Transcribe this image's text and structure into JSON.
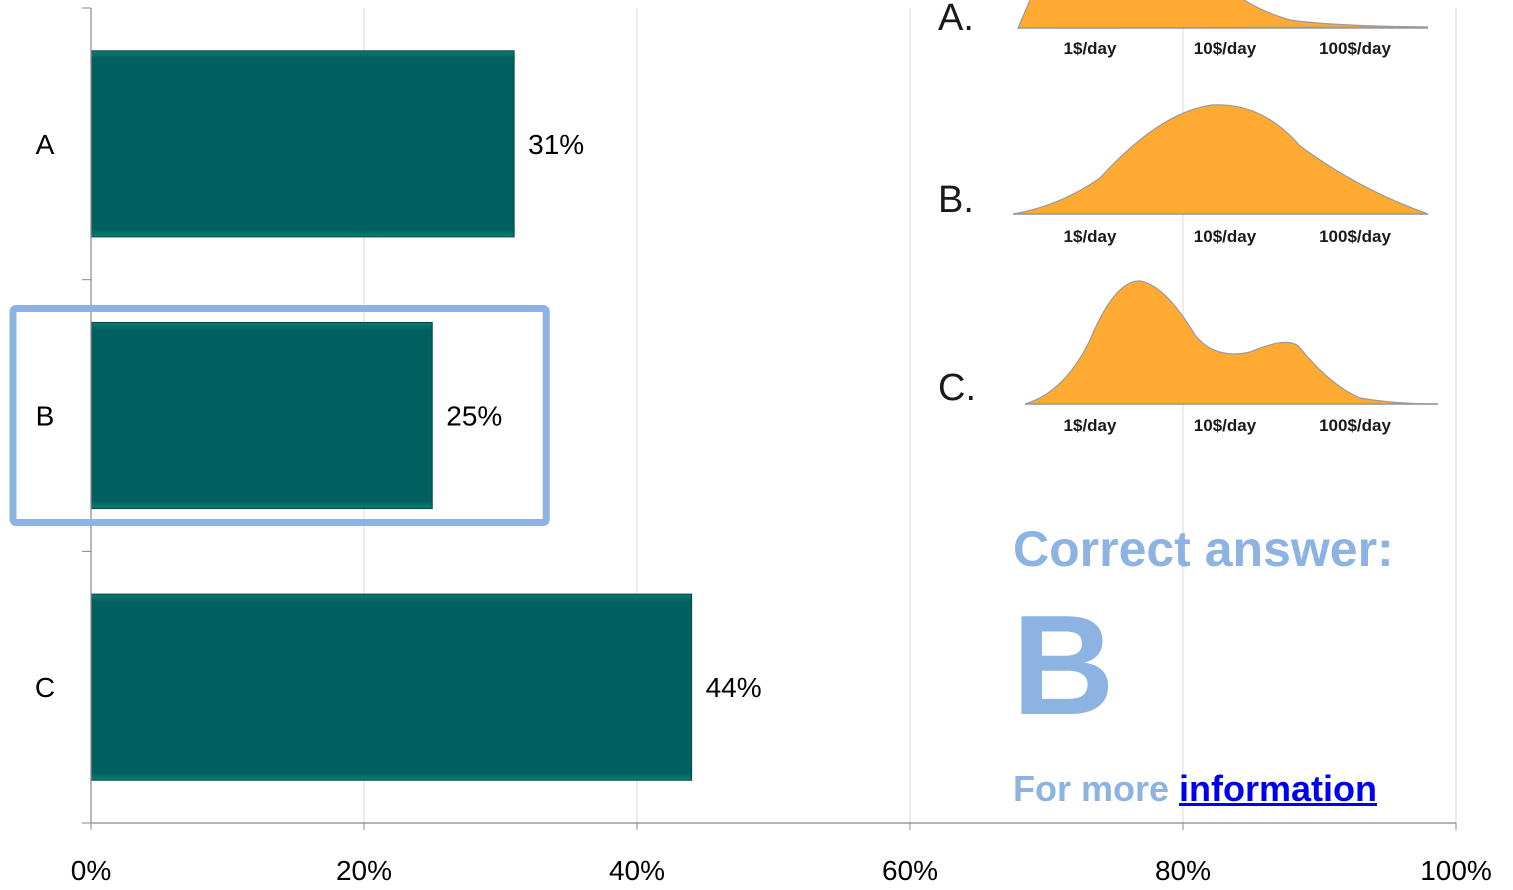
{
  "chart_data": {
    "type": "bar",
    "orientation": "horizontal",
    "categories": [
      "A",
      "B",
      "C"
    ],
    "values": [
      31,
      25,
      44
    ],
    "data_labels": [
      "31%",
      "25%",
      "44%"
    ],
    "xlim": [
      0,
      100
    ],
    "x_ticks": [
      0,
      20,
      40,
      60,
      80,
      100
    ],
    "x_tick_labels": [
      "0%",
      "20%",
      "40%",
      "60%",
      "80%",
      "100%"
    ],
    "grid": true,
    "bar_color": "#006060",
    "highlighted_category": "B",
    "highlight_color": "#8db3e2"
  },
  "distributions": {
    "fill_color": "#ffab33",
    "axis_labels": [
      "1$/day",
      "10$/day",
      "100$/day"
    ],
    "items": [
      {
        "label": "A.",
        "shape": "skewed-low-cut"
      },
      {
        "label": "B.",
        "shape": "unimodal"
      },
      {
        "label": "C.",
        "shape": "bimodal"
      }
    ]
  },
  "answer": {
    "title": "Correct answer:",
    "letter": "B",
    "more_prefix": "For more ",
    "link_text": "information"
  },
  "colors": {
    "answer_text": "#8db3e2",
    "link": "#0000ee"
  }
}
